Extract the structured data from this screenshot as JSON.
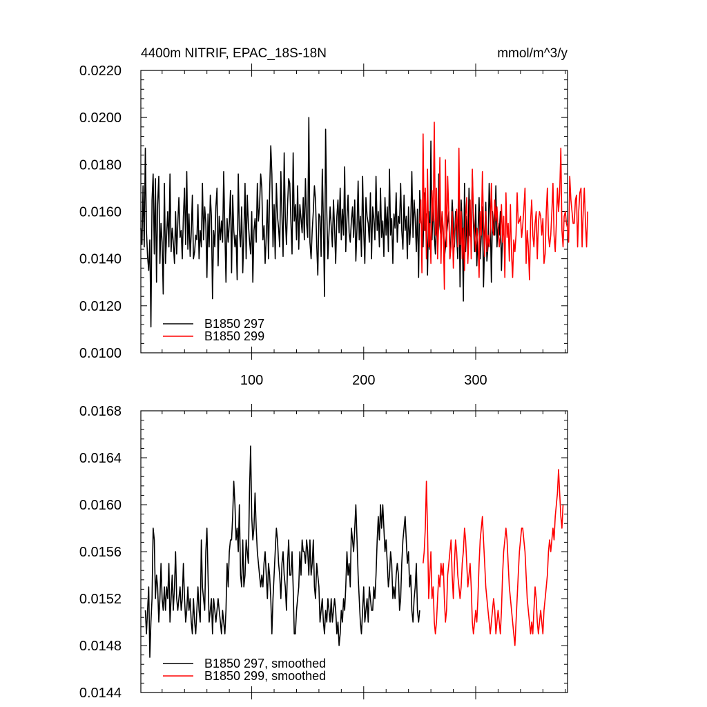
{
  "chart_data": [
    {
      "type": "line",
      "title_left": "4400m NITRIF, EPAC_18S-18N",
      "title_right": "mmol/m^3/y",
      "xlim": [
        1,
        382
      ],
      "ylim": [
        0.01,
        0.022
      ],
      "xticks": [
        100,
        200,
        300
      ],
      "xtick_labels": [
        "100",
        "200",
        "300"
      ],
      "yticks": [
        0.01,
        0.012,
        0.014,
        0.016,
        0.018,
        0.02,
        0.022
      ],
      "ytick_labels": [
        "0.0100",
        "0.0120",
        "0.0140",
        "0.0160",
        "0.0180",
        "0.0200",
        "0.0220"
      ],
      "legend_position": "bottom-left",
      "series": [
        {
          "name": "B1850 297",
          "color": "#000000",
          "x_start": 1,
          "values": [
            0.0153,
            0.0146,
            0.0171,
            0.0145,
            0.0187,
            0.0152,
            0.0141,
            0.0135,
            0.0148,
            0.0111,
            0.0165,
            0.0176,
            0.0142,
            0.0174,
            0.013,
            0.0163,
            0.0175,
            0.0138,
            0.0155,
            0.0147,
            0.0125,
            0.0172,
            0.0138,
            0.015,
            0.016,
            0.0145,
            0.0176,
            0.0143,
            0.0153,
            0.0147,
            0.0138,
            0.016,
            0.0142,
            0.0155,
            0.0166,
            0.0149,
            0.0152,
            0.014,
            0.0158,
            0.017,
            0.0146,
            0.0177,
            0.0144,
            0.0159,
            0.0141,
            0.0151,
            0.0167,
            0.014,
            0.0143,
            0.015,
            0.0148,
            0.0163,
            0.014,
            0.0152,
            0.0145,
            0.0172,
            0.0148,
            0.0162,
            0.0155,
            0.0132,
            0.0159,
            0.0145,
            0.0167,
            0.0158,
            0.0123,
            0.0152,
            0.0145,
            0.0162,
            0.017,
            0.0137,
            0.0158,
            0.0148,
            0.0156,
            0.0147,
            0.0177,
            0.0152,
            0.013,
            0.0157,
            0.0147,
            0.0155,
            0.0169,
            0.0134,
            0.0167,
            0.0152,
            0.0145,
            0.015,
            0.0131,
            0.0176,
            0.0152,
            0.0145,
            0.0162,
            0.0134,
            0.015,
            0.0172,
            0.014,
            0.0167,
            0.0155,
            0.0148,
            0.0142,
            0.016,
            0.013,
            0.0152,
            0.0157,
            0.0147,
            0.0172,
            0.0156,
            0.0162,
            0.0176,
            0.017,
            0.0148,
            0.0154,
            0.0138,
            0.015,
            0.0165,
            0.014,
            0.0168,
            0.0188,
            0.0176,
            0.0145,
            0.0163,
            0.014,
            0.0172,
            0.0158,
            0.0153,
            0.0145,
            0.0177,
            0.0158,
            0.0141,
            0.0185,
            0.0158,
            0.0146,
            0.0163,
            0.0174,
            0.0172,
            0.0155,
            0.0142,
            0.0185,
            0.0156,
            0.0163,
            0.0148,
            0.0171,
            0.0144,
            0.0163,
            0.0157,
            0.0151,
            0.0166,
            0.0148,
            0.0174,
            0.0155,
            0.0149,
            0.02,
            0.0147,
            0.014,
            0.0152,
            0.016,
            0.0171,
            0.0165,
            0.0146,
            0.0133,
            0.0159,
            0.0158,
            0.0141,
            0.0178,
            0.0155,
            0.0124,
            0.0195,
            0.016,
            0.014,
            0.0151,
            0.0162,
            0.0154,
            0.0145,
            0.0165,
            0.0153,
            0.0138,
            0.0158,
            0.0165,
            0.0151,
            0.017,
            0.0148,
            0.0161,
            0.015,
            0.0179,
            0.0143,
            0.0157,
            0.0167,
            0.0151,
            0.0147,
            0.0156,
            0.0162,
            0.0149,
            0.0165,
            0.0139,
            0.0153,
            0.0173,
            0.0148,
            0.0158,
            0.0141,
            0.0175,
            0.0152,
            0.0138,
            0.0166,
            0.0158,
            0.0155,
            0.0147,
            0.0168,
            0.014,
            0.0162,
            0.0157,
            0.0148,
            0.0175,
            0.0152,
            0.016,
            0.0145,
            0.017,
            0.0149,
            0.0156,
            0.0141,
            0.0166,
            0.015,
            0.0162,
            0.0143,
            0.0178,
            0.015,
            0.0157,
            0.0138,
            0.0159,
            0.0153,
            0.0168,
            0.0147,
            0.0158,
            0.0155,
            0.0172,
            0.0152,
            0.0144,
            0.0167,
            0.0152,
            0.0158,
            0.014,
            0.0162,
            0.0146,
            0.0155,
            0.0177,
            0.0149,
            0.0165,
            0.0157,
            0.0143,
            0.0161,
            0.0132,
            0.0169,
            0.0157,
            0.0152,
            0.0145,
            0.0168,
            0.0152,
            0.0159,
            0.0133,
            0.016,
            0.0144,
            0.019,
            0.0148,
            0.0165,
            0.015,
            0.0142,
            0.0158,
            0.0145,
            0.0176,
            0.0154,
            0.0149,
            0.016,
            0.015,
            0.014,
            0.0145,
            0.015,
            0.0155,
            0.016,
            0.014,
            0.015,
            0.0165,
            0.0155,
            0.0145,
            0.016,
            0.015,
            0.014,
            0.0172,
            0.0128,
            0.0165,
            0.0155,
            0.0122,
            0.0172,
            0.0143,
            0.0158,
            0.014,
            0.017,
            0.015,
            0.0149,
            0.0176,
            0.0155,
            0.0143,
            0.0163,
            0.0137,
            0.015,
            0.0166,
            0.014,
            0.015,
            0.0162,
            0.0128,
            0.0148,
            0.0164,
            0.0139,
            0.0145,
            0.0172,
            0.0158,
            0.013,
            0.016,
            0.0152,
            0.015,
            0.0171,
            0.0145,
            0.0155,
            0.015,
            0.016,
            0.0135,
            0.015
          ]
        },
        {
          "name": "B1850 299",
          "color": "#ff0000",
          "x_start": 250,
          "values": [
            0.0155,
            0.0165,
            0.0134,
            0.0193,
            0.0152,
            0.017,
            0.014,
            0.0178,
            0.0145,
            0.0155,
            0.0138,
            0.0169,
            0.0156,
            0.0198,
            0.015,
            0.017,
            0.014,
            0.0156,
            0.0183,
            0.0138,
            0.016,
            0.0153,
            0.0127,
            0.0182,
            0.0145,
            0.0175,
            0.0159,
            0.014,
            0.0145,
            0.016,
            0.0136,
            0.015,
            0.0155,
            0.0161,
            0.0145,
            0.0187,
            0.0146,
            0.016,
            0.014,
            0.0153,
            0.0135,
            0.0158,
            0.0166,
            0.0138,
            0.015,
            0.0165,
            0.014,
            0.0178,
            0.016,
            0.015,
            0.0143,
            0.0153,
            0.0149,
            0.0132,
            0.016,
            0.015,
            0.0177,
            0.0155,
            0.0141,
            0.016,
            0.0143,
            0.015,
            0.0145,
            0.0152,
            0.0172,
            0.0153,
            0.015,
            0.0165,
            0.0156,
            0.0162,
            0.0153,
            0.0145,
            0.015,
            0.0163,
            0.0147,
            0.0158,
            0.0132,
            0.0168,
            0.0149,
            0.0155,
            0.0139,
            0.0163,
            0.0142,
            0.0132,
            0.0148,
            0.0143,
            0.015,
            0.0168,
            0.0155,
            0.0156,
            0.0158,
            0.0149,
            0.0154,
            0.0161,
            0.017,
            0.0138,
            0.0152,
            0.0145,
            0.0131,
            0.0156,
            0.0165,
            0.015,
            0.0145,
            0.0155,
            0.016,
            0.014,
            0.0155,
            0.016,
            0.0158,
            0.015,
            0.0157,
            0.0138,
            0.0142,
            0.016,
            0.017,
            0.015,
            0.0145,
            0.015,
            0.016,
            0.0172,
            0.015,
            0.0143,
            0.0155,
            0.017,
            0.016,
            0.0168,
            0.0187,
            0.0152,
            0.0145,
            0.0158,
            0.016,
            0.0155,
            0.0153,
            0.0147,
            0.0175,
            0.0165,
            0.016,
            0.0155,
            0.0155,
            0.0165,
            0.0167,
            0.0145,
            0.016,
            0.0168,
            0.017,
            0.0145,
            0.016,
            0.017,
            0.0155,
            0.0145,
            0.016
          ]
        }
      ]
    },
    {
      "type": "line",
      "xlim": [
        1,
        382
      ],
      "ylim": [
        0.0144,
        0.0168
      ],
      "xticks": [
        100,
        200,
        300
      ],
      "yticks": [
        0.0144,
        0.0148,
        0.0152,
        0.0156,
        0.016,
        0.0164,
        0.0168
      ],
      "ytick_labels": [
        "0.0144",
        "0.0148",
        "0.0152",
        "0.0156",
        "0.0160",
        "0.0164",
        "0.0168"
      ],
      "legend_position": "bottom-left",
      "series": [
        {
          "name": "B1850 297, smoothed",
          "color": "#000000",
          "x_start": 5,
          "values": [
            0.0151,
            0.0149,
            0.0151,
            0.0153,
            0.0147,
            0.015,
            0.0152,
            0.0158,
            0.0157,
            0.0152,
            0.0154,
            0.0153,
            0.015,
            0.0152,
            0.0155,
            0.0152,
            0.0151,
            0.0153,
            0.0151,
            0.0153,
            0.0152,
            0.0155,
            0.015,
            0.0152,
            0.0154,
            0.0151,
            0.0153,
            0.0156,
            0.0152,
            0.0151,
            0.0152,
            0.0153,
            0.0151,
            0.0152,
            0.0155,
            0.0152,
            0.015,
            0.0151,
            0.0153,
            0.0151,
            0.0152,
            0.015,
            0.0149,
            0.0152,
            0.015,
            0.0149,
            0.0151,
            0.0153,
            0.0151,
            0.015,
            0.0157,
            0.0153,
            0.0152,
            0.0151,
            0.0156,
            0.0158,
            0.0154,
            0.015,
            0.0151,
            0.0152,
            0.0149,
            0.0152,
            0.0151,
            0.015,
            0.0151,
            0.0152,
            0.0151,
            0.015,
            0.0149,
            0.0151,
            0.015,
            0.0149,
            0.0151,
            0.0155,
            0.0153,
            0.0156,
            0.0157,
            0.0157,
            0.0159,
            0.0162,
            0.016,
            0.0157,
            0.0158,
            0.0156,
            0.016,
            0.0154,
            0.0153,
            0.0157,
            0.0153,
            0.0154,
            0.0157,
            0.0156,
            0.0155,
            0.0161,
            0.0165,
            0.0159,
            0.0157,
            0.0158,
            0.0161,
            0.0158,
            0.0156,
            0.0155,
            0.0154,
            0.0153,
            0.0154,
            0.0153,
            0.0155,
            0.0156,
            0.0154,
            0.0152,
            0.0155,
            0.0154,
            0.0152,
            0.0149,
            0.0152,
            0.0154,
            0.0156,
            0.0158,
            0.0157,
            0.0155,
            0.0154,
            0.0152,
            0.0155,
            0.0156,
            0.0154,
            0.0153,
            0.0151,
            0.0155,
            0.0157,
            0.0154,
            0.0154,
            0.0156,
            0.0153,
            0.0149,
            0.0149,
            0.0151,
            0.0152,
            0.0153,
            0.0156,
            0.0154,
            0.0157,
            0.0156,
            0.0156,
            0.0155,
            0.0157,
            0.0156,
            0.0154,
            0.0157,
            0.0154,
            0.0155,
            0.0157,
            0.0153,
            0.0152,
            0.0155,
            0.0154,
            0.0153,
            0.015,
            0.0151,
            0.0152,
            0.015,
            0.0149,
            0.0151,
            0.015,
            0.0152,
            0.0151,
            0.015,
            0.0152,
            0.015,
            0.0151,
            0.0152,
            0.0151,
            0.0149,
            0.015,
            0.0148,
            0.0149,
            0.0151,
            0.015,
            0.0152,
            0.0151,
            0.0153,
            0.0156,
            0.0154,
            0.0155,
            0.0153,
            0.0158,
            0.0157,
            0.0156,
            0.0158,
            0.016,
            0.0157,
            0.0154,
            0.0152,
            0.015,
            0.0149,
            0.0151,
            0.0153,
            0.015,
            0.0151,
            0.0152,
            0.015,
            0.0153,
            0.0152,
            0.0151,
            0.0151,
            0.0153,
            0.0152,
            0.0154,
            0.0157,
            0.0159,
            0.0157,
            0.016,
            0.0158,
            0.016,
            0.0158,
            0.0156,
            0.0157,
            0.0155,
            0.0153,
            0.0154,
            0.0156,
            0.0155,
            0.0152,
            0.0153,
            0.0152,
            0.0154,
            0.0155,
            0.0154,
            0.0151,
            0.0152,
            0.0155,
            0.0157,
            0.0158,
            0.0159,
            0.0157,
            0.0155,
            0.0156,
            0.0153,
            0.0154,
            0.0151,
            0.015,
            0.0152,
            0.0153,
            0.0155,
            0.0151,
            0.015,
            0.0151
          ]
        },
        {
          "name": "B1850 299, smoothed",
          "color": "#ff0000",
          "x_start": 253,
          "values": [
            0.0155,
            0.0156,
            0.0158,
            0.0162,
            0.0158,
            0.0152,
            0.0154,
            0.0156,
            0.0152,
            0.0153,
            0.015,
            0.0149,
            0.015,
            0.0152,
            0.0154,
            0.0153,
            0.0155,
            0.0154,
            0.0155,
            0.0152,
            0.015,
            0.0151,
            0.0154,
            0.0155,
            0.0156,
            0.0157,
            0.0154,
            0.0152,
            0.0155,
            0.0157,
            0.0156,
            0.0154,
            0.0153,
            0.0152,
            0.0153,
            0.0155,
            0.0156,
            0.0158,
            0.0157,
            0.0155,
            0.0153,
            0.0154,
            0.0155,
            0.0153,
            0.015,
            0.0149,
            0.015,
            0.0151,
            0.015,
            0.0152,
            0.0155,
            0.0157,
            0.0158,
            0.0159,
            0.0157,
            0.0155,
            0.0153,
            0.0152,
            0.0151,
            0.015,
            0.0149,
            0.015,
            0.0151,
            0.0152,
            0.0151,
            0.0149,
            0.015,
            0.0151,
            0.015,
            0.0149,
            0.0151,
            0.0154,
            0.0156,
            0.0157,
            0.0158,
            0.0157,
            0.0155,
            0.0153,
            0.0152,
            0.0151,
            0.015,
            0.0149,
            0.0148,
            0.015,
            0.0152,
            0.0154,
            0.0156,
            0.0157,
            0.0158,
            0.0158,
            0.0157,
            0.0156,
            0.0154,
            0.0152,
            0.0151,
            0.015,
            0.0149,
            0.015,
            0.0149,
            0.0151,
            0.0153,
            0.0152,
            0.015,
            0.0149,
            0.015,
            0.0151,
            0.015,
            0.0149,
            0.0151,
            0.0152,
            0.0153,
            0.0154,
            0.0156,
            0.0157,
            0.0156,
            0.0157,
            0.0158,
            0.0157,
            0.0159,
            0.016,
            0.0161,
            0.0163,
            0.0161,
            0.0159,
            0.0158,
            0.016
          ]
        }
      ]
    }
  ]
}
